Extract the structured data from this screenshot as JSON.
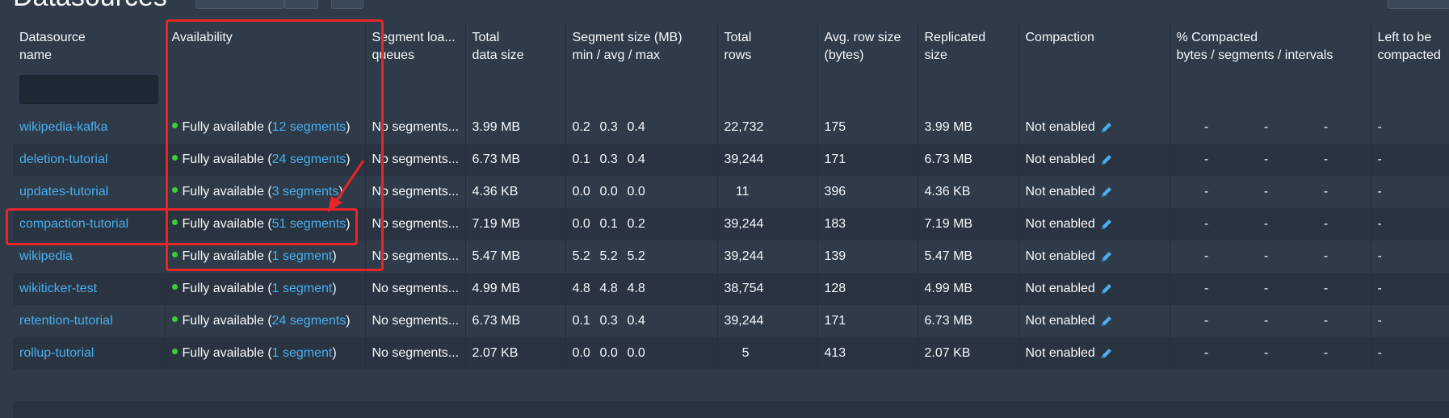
{
  "page": {
    "title": "Datasources"
  },
  "columns": {
    "name": [
      "Datasource",
      "name"
    ],
    "availability": [
      "Availability",
      ""
    ],
    "load_queues": [
      "Segment loa...",
      "queues"
    ],
    "total_size": [
      "Total",
      "data size"
    ],
    "segment_size": [
      "Segment size (MB)",
      "min / avg / max"
    ],
    "total_rows": [
      "Total",
      "rows"
    ],
    "avg_row": [
      "Avg. row size",
      "(bytes)"
    ],
    "replicated": [
      "Replicated",
      "size"
    ],
    "compaction": [
      "Compaction",
      ""
    ],
    "pct_compacted": [
      "% Compacted",
      "bytes / segments / intervals"
    ],
    "left": [
      "Left to be",
      "compacted"
    ]
  },
  "rows": [
    {
      "name": "wikipedia-kafka",
      "avail_prefix": "Fully available (",
      "segments": "12 segments",
      "avail_suffix": ")",
      "queue": "No segments...",
      "total_size": "3.99 MB",
      "seg_min": "0.2",
      "seg_avg": "0.3",
      "seg_max": "0.4",
      "total_rows": "22,732",
      "avg_row": "175",
      "replicated": "3.99 MB",
      "compaction": "Not enabled",
      "pct": [
        "-",
        "-",
        "-"
      ],
      "left": "-"
    },
    {
      "name": "deletion-tutorial",
      "avail_prefix": "Fully available (",
      "segments": "24 segments",
      "avail_suffix": ")",
      "queue": "No segments...",
      "total_size": "6.73 MB",
      "seg_min": "0.1",
      "seg_avg": "0.3",
      "seg_max": "0.4",
      "total_rows": "39,244",
      "avg_row": "171",
      "replicated": "6.73 MB",
      "compaction": "Not enabled",
      "pct": [
        "-",
        "-",
        "-"
      ],
      "left": "-"
    },
    {
      "name": "updates-tutorial",
      "avail_prefix": "Fully available (",
      "segments": "3 segments",
      "avail_suffix": ")",
      "queue": "No segments...",
      "total_size": "4.36 KB",
      "seg_min": "0.0",
      "seg_avg": "0.0",
      "seg_max": "0.0",
      "total_rows": "11",
      "avg_row": "396",
      "replicated": "4.36 KB",
      "compaction": "Not enabled",
      "pct": [
        "-",
        "-",
        "-"
      ],
      "left": "-"
    },
    {
      "name": "compaction-tutorial",
      "avail_prefix": "Fully available (",
      "segments": "51 segments",
      "avail_suffix": ")",
      "queue": "No segments...",
      "total_size": "7.19 MB",
      "seg_min": "0.0",
      "seg_avg": "0.1",
      "seg_max": "0.2",
      "total_rows": "39,244",
      "avg_row": "183",
      "replicated": "7.19 MB",
      "compaction": "Not enabled",
      "pct": [
        "-",
        "-",
        "-"
      ],
      "left": "-"
    },
    {
      "name": "wikipedia",
      "avail_prefix": "Fully available (",
      "segments": "1 segment",
      "avail_suffix": ")",
      "queue": "No segments...",
      "total_size": "5.47 MB",
      "seg_min": "5.2",
      "seg_avg": "5.2",
      "seg_max": "5.2",
      "total_rows": "39,244",
      "avg_row": "139",
      "replicated": "5.47 MB",
      "compaction": "Not enabled",
      "pct": [
        "-",
        "-",
        "-"
      ],
      "left": "-"
    },
    {
      "name": "wikiticker-test",
      "avail_prefix": "Fully available (",
      "segments": "1 segment",
      "avail_suffix": ")",
      "queue": "No segments...",
      "total_size": "4.99 MB",
      "seg_min": "4.8",
      "seg_avg": "4.8",
      "seg_max": "4.8",
      "total_rows": "38,754",
      "avg_row": "128",
      "replicated": "4.99 MB",
      "compaction": "Not enabled",
      "pct": [
        "-",
        "-",
        "-"
      ],
      "left": "-"
    },
    {
      "name": "retention-tutorial",
      "avail_prefix": "Fully available (",
      "segments": "24 segments",
      "avail_suffix": ")",
      "queue": "No segments...",
      "total_size": "6.73 MB",
      "seg_min": "0.1",
      "seg_avg": "0.3",
      "seg_max": "0.4",
      "total_rows": "39,244",
      "avg_row": "171",
      "replicated": "6.73 MB",
      "compaction": "Not enabled",
      "pct": [
        "-",
        "-",
        "-"
      ],
      "left": "-"
    },
    {
      "name": "rollup-tutorial",
      "avail_prefix": "Fully available (",
      "segments": "1 segment",
      "avail_suffix": ")",
      "queue": "No segments...",
      "total_size": "2.07 KB",
      "seg_min": "0.0",
      "seg_avg": "0.0",
      "seg_max": "0.0",
      "total_rows": "5",
      "avg_row": "413",
      "replicated": "2.07 KB",
      "compaction": "Not enabled",
      "pct": [
        "-",
        "-",
        "-"
      ],
      "left": "-"
    }
  ],
  "colors": {
    "link": "#48aff0",
    "available_dot": "#3dcc3d",
    "annotation": "#e8262a"
  },
  "icons": {
    "edit": "pencil-icon"
  }
}
